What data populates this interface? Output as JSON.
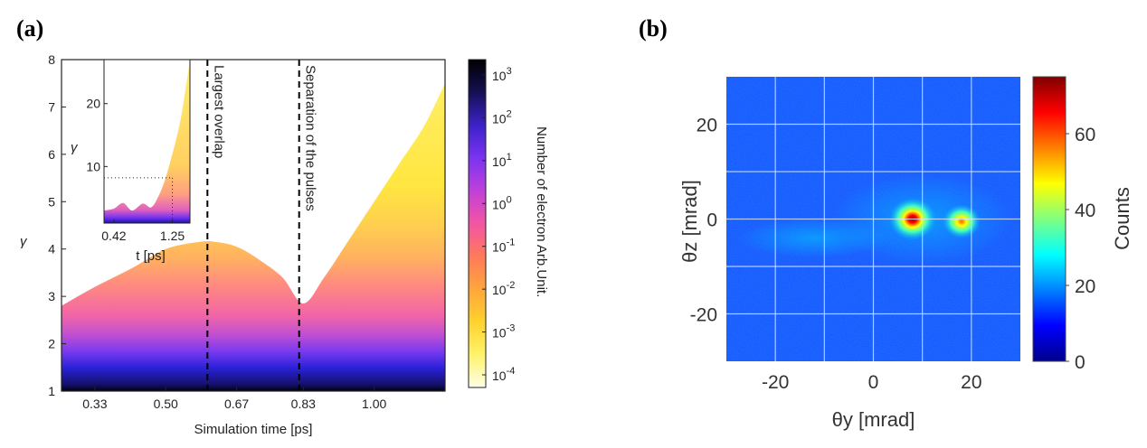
{
  "panel_a_label": "(a)",
  "panel_b_label": "(b)",
  "chart_data": [
    {
      "panel": "(a)",
      "type": "heatmap",
      "xlabel": "Simulation time [ps]",
      "ylabel": "γ",
      "xticks": [
        "0.33",
        "0.50",
        "0.67",
        "0.83",
        "1.00"
      ],
      "xtick_values": [
        0.33,
        0.5,
        0.67,
        0.83,
        1.0
      ],
      "yticks": [
        "1",
        "2",
        "3",
        "4",
        "5",
        "6",
        "7",
        "8"
      ],
      "xlim": [
        0.25,
        1.17
      ],
      "ylim": [
        1,
        8
      ],
      "upper_envelope": {
        "x": [
          0.25,
          0.33,
          0.42,
          0.5,
          0.58,
          0.62,
          0.67,
          0.72,
          0.78,
          0.83,
          0.88,
          0.94,
          1.0,
          1.06,
          1.12,
          1.17
        ],
        "gamma": [
          2.8,
          3.2,
          3.6,
          4.0,
          4.15,
          4.15,
          4.05,
          3.8,
          3.4,
          2.85,
          3.4,
          4.2,
          5.0,
          5.8,
          6.6,
          7.5
        ]
      },
      "annotations": [
        {
          "text": "Largest overlap",
          "x": 0.6
        },
        {
          "text": "Separation of the pulses",
          "x": 0.82
        }
      ],
      "colorbar": {
        "label": "Number of electron Arb.Unit.",
        "ticks": [
          "10^3",
          "10^2",
          "10^1",
          "10^0",
          "10^-1",
          "10^-2",
          "10^-3",
          "10^-4"
        ],
        "scale": "log",
        "colors": [
          "#fffde8",
          "#fff36a",
          "#ffd22e",
          "#ffa63c",
          "#ff7a5a",
          "#f255a4",
          "#c040d8",
          "#7a34f2",
          "#3c22c6",
          "#141055",
          "#000000"
        ]
      },
      "inset": {
        "xlabel": "t [ps]",
        "ylabel": "γ",
        "xticks": [
          "0.42",
          "1.25"
        ],
        "xtick_values": [
          0.42,
          1.25
        ],
        "yticks": [
          "10",
          "20"
        ],
        "ytick_values": [
          10,
          20
        ],
        "xlim": [
          0.28,
          1.5
        ],
        "ylim": [
          1,
          27
        ],
        "upper_envelope": {
          "x": [
            0.28,
            0.42,
            0.55,
            0.68,
            0.83,
            0.95,
            1.05,
            1.15,
            1.25,
            1.35,
            1.42,
            1.5
          ],
          "gamma": [
            3.0,
            3.3,
            4.2,
            3.0,
            4.1,
            3.5,
            5.2,
            8.0,
            12.0,
            16.5,
            21.0,
            27.0
          ]
        },
        "dotted_marker": {
          "x": 1.25,
          "gamma": 8.2
        }
      }
    },
    {
      "panel": "(b)",
      "type": "heatmap",
      "xlabel": "θy [mrad]",
      "ylabel": "θz [mrad]",
      "xticks": [
        "-20",
        "0",
        "20"
      ],
      "xtick_values": [
        -20,
        0,
        20
      ],
      "yticks": [
        "20",
        "0",
        "-20"
      ],
      "ytick_values": [
        20,
        0,
        -20
      ],
      "xlim": [
        -30,
        30
      ],
      "ylim": [
        -30,
        30
      ],
      "grid": true,
      "hotspots": [
        {
          "x": 8,
          "y": 0,
          "counts": 70
        },
        {
          "x": 18,
          "y": -0.5,
          "counts": 45
        }
      ],
      "background_counts": 12,
      "colorbar": {
        "label": "Counts",
        "ticks": [
          "0",
          "20",
          "40",
          "60"
        ],
        "tick_values": [
          0,
          20,
          40,
          60
        ],
        "range": [
          0,
          75
        ],
        "colors": [
          "#00008b",
          "#0000ff",
          "#0080ff",
          "#00ffff",
          "#80ff80",
          "#ffff00",
          "#ff8000",
          "#ff0000",
          "#800000"
        ]
      }
    }
  ]
}
